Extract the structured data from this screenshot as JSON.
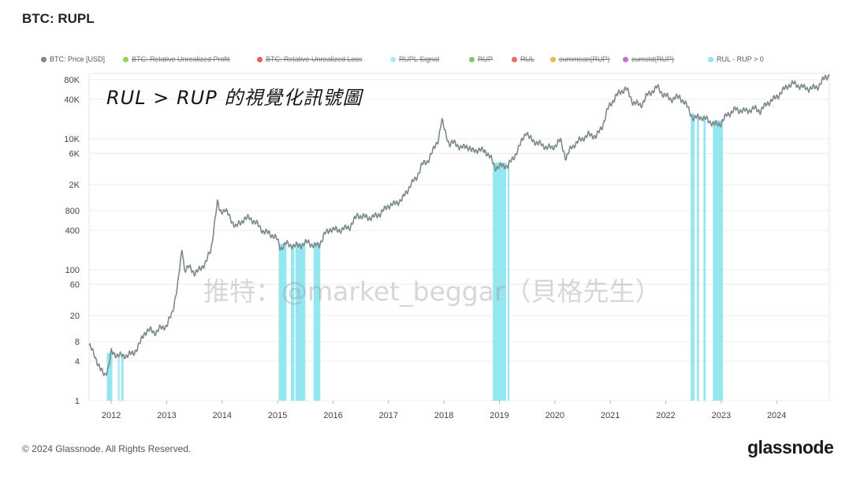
{
  "title": "BTC: RUPL",
  "legend": [
    {
      "label": "BTC: Price [USD]",
      "color": "#7d8a8a",
      "struck": false
    },
    {
      "label": "BTC: Relative Unrealized Profit",
      "color": "#9ccf5a",
      "struck": true
    },
    {
      "label": "BTC: Relative Unrealized Loss",
      "color": "#e0625c",
      "struck": true
    },
    {
      "label": "RUPL Signal",
      "color": "#a8ecf4",
      "struck": true
    },
    {
      "label": "RUP",
      "color": "#86c864",
      "struck": true
    },
    {
      "label": "RUL",
      "color": "#e46b5f",
      "struck": true
    },
    {
      "label": "cummean(RUP)",
      "color": "#f1b94c",
      "struck": true
    },
    {
      "label": "cumstd(RUP)",
      "color": "#c86ee0",
      "struck": true
    },
    {
      "label": "RUL - RUP > 0",
      "color": "#8ee5f0",
      "struck": false
    }
  ],
  "annotation": "RUL > RUP 的視覺化訊號圖",
  "watermark": "推特：@market_beggar（貝格先生）",
  "copyright": "© 2024 Glassnode. All Rights Reserved.",
  "brand": "glassnode",
  "chart_data": {
    "type": "line",
    "title": "BTC: RUPL",
    "y_scale": "log",
    "ylim": [
      1,
      100000
    ],
    "yticks": [
      1,
      4,
      8,
      20,
      60,
      100,
      400,
      800,
      2000,
      6000,
      10000,
      40000,
      80000
    ],
    "ytick_labels": [
      "1",
      "4",
      "8",
      "20",
      "60",
      "100",
      "400",
      "800",
      "2K",
      "6K",
      "10K",
      "40K",
      "80K"
    ],
    "xlim": [
      2011.6,
      2024.95
    ],
    "xtick_labels": [
      "2012",
      "2013",
      "2014",
      "2015",
      "2016",
      "2017",
      "2018",
      "2019",
      "2020",
      "2021",
      "2022",
      "2023",
      "2024"
    ],
    "grid": true,
    "series": [
      {
        "name": "BTC: Price [USD]",
        "color": "#7d8a8a",
        "points": [
          [
            2011.6,
            7
          ],
          [
            2011.7,
            5
          ],
          [
            2011.8,
            3
          ],
          [
            2011.88,
            2.5
          ],
          [
            2011.95,
            3.2
          ],
          [
            2012.0,
            5.5
          ],
          [
            2012.1,
            5
          ],
          [
            2012.2,
            4.8
          ],
          [
            2012.3,
            5
          ],
          [
            2012.4,
            5.3
          ],
          [
            2012.5,
            7
          ],
          [
            2012.6,
            11
          ],
          [
            2012.7,
            12
          ],
          [
            2012.8,
            11
          ],
          [
            2012.9,
            13
          ],
          [
            2013.0,
            14
          ],
          [
            2013.1,
            22
          ],
          [
            2013.2,
            60
          ],
          [
            2013.28,
            220
          ],
          [
            2013.32,
            100
          ],
          [
            2013.4,
            110
          ],
          [
            2013.5,
            90
          ],
          [
            2013.6,
            100
          ],
          [
            2013.7,
            130
          ],
          [
            2013.8,
            200
          ],
          [
            2013.88,
            700
          ],
          [
            2013.92,
            1100
          ],
          [
            2013.96,
            750
          ],
          [
            2014.05,
            850
          ],
          [
            2014.15,
            600
          ],
          [
            2014.25,
            450
          ],
          [
            2014.4,
            600
          ],
          [
            2014.5,
            620
          ],
          [
            2014.65,
            480
          ],
          [
            2014.75,
            380
          ],
          [
            2014.85,
            360
          ],
          [
            2014.95,
            320
          ],
          [
            2015.0,
            280
          ],
          [
            2015.05,
            210
          ],
          [
            2015.15,
            250
          ],
          [
            2015.3,
            230
          ],
          [
            2015.45,
            240
          ],
          [
            2015.55,
            270
          ],
          [
            2015.65,
            230
          ],
          [
            2015.75,
            240
          ],
          [
            2015.85,
            350
          ],
          [
            2015.95,
            420
          ],
          [
            2016.1,
            400
          ],
          [
            2016.3,
            450
          ],
          [
            2016.45,
            700
          ],
          [
            2016.5,
            650
          ],
          [
            2016.7,
            620
          ],
          [
            2016.85,
            720
          ],
          [
            2017.0,
            960
          ],
          [
            2017.1,
            1000
          ],
          [
            2017.25,
            1200
          ],
          [
            2017.4,
            2000
          ],
          [
            2017.5,
            2500
          ],
          [
            2017.6,
            4000
          ],
          [
            2017.7,
            4500
          ],
          [
            2017.8,
            6500
          ],
          [
            2017.9,
            10000
          ],
          [
            2017.96,
            19000
          ],
          [
            2018.05,
            11000
          ],
          [
            2018.1,
            8000
          ],
          [
            2018.2,
            9000
          ],
          [
            2018.3,
            7000
          ],
          [
            2018.4,
            8000
          ],
          [
            2018.5,
            6500
          ],
          [
            2018.6,
            6800
          ],
          [
            2018.75,
            6500
          ],
          [
            2018.85,
            5000
          ],
          [
            2018.92,
            3600
          ],
          [
            2019.0,
            3800
          ],
          [
            2019.15,
            3900
          ],
          [
            2019.25,
            5000
          ],
          [
            2019.4,
            9000
          ],
          [
            2019.48,
            13000
          ],
          [
            2019.55,
            10000
          ],
          [
            2019.7,
            8500
          ],
          [
            2019.85,
            7500
          ],
          [
            2019.95,
            7200
          ],
          [
            2020.1,
            9500
          ],
          [
            2020.2,
            5000
          ],
          [
            2020.3,
            7500
          ],
          [
            2020.45,
            9500
          ],
          [
            2020.6,
            11500
          ],
          [
            2020.75,
            11000
          ],
          [
            2020.85,
            15000
          ],
          [
            2020.95,
            28000
          ],
          [
            2021.1,
            45000
          ],
          [
            2021.28,
            60000
          ],
          [
            2021.4,
            37000
          ],
          [
            2021.55,
            32000
          ],
          [
            2021.65,
            45000
          ],
          [
            2021.85,
            62000
          ],
          [
            2021.95,
            48000
          ],
          [
            2022.1,
            40000
          ],
          [
            2022.25,
            44000
          ],
          [
            2022.4,
            30000
          ],
          [
            2022.5,
            20000
          ],
          [
            2022.6,
            22000
          ],
          [
            2022.75,
            19500
          ],
          [
            2022.88,
            16500
          ],
          [
            2022.98,
            16800
          ],
          [
            2023.1,
            23000
          ],
          [
            2023.25,
            28000
          ],
          [
            2023.45,
            26500
          ],
          [
            2023.6,
            29000
          ],
          [
            2023.7,
            26500
          ],
          [
            2023.85,
            36000
          ],
          [
            2023.98,
            42000
          ],
          [
            2024.2,
            65000
          ],
          [
            2024.3,
            70000
          ],
          [
            2024.45,
            62000
          ],
          [
            2024.6,
            58000
          ],
          [
            2024.75,
            63000
          ],
          [
            2024.88,
            88000
          ],
          [
            2024.95,
            93000
          ]
        ]
      }
    ],
    "signal_series": {
      "name": "RUL - RUP > 0",
      "color": "#8ee5f0",
      "periods": [
        [
          2011.92,
          2012.02
        ],
        [
          2012.12,
          2012.14
        ],
        [
          2012.18,
          2012.22
        ],
        [
          2015.02,
          2015.16
        ],
        [
          2015.24,
          2015.3
        ],
        [
          2015.32,
          2015.5
        ],
        [
          2015.65,
          2015.77
        ],
        [
          2018.88,
          2019.12
        ],
        [
          2019.15,
          2019.18
        ],
        [
          2022.45,
          2022.52
        ],
        [
          2022.56,
          2022.6
        ],
        [
          2022.68,
          2022.72
        ],
        [
          2022.85,
          2023.03
        ]
      ]
    }
  }
}
